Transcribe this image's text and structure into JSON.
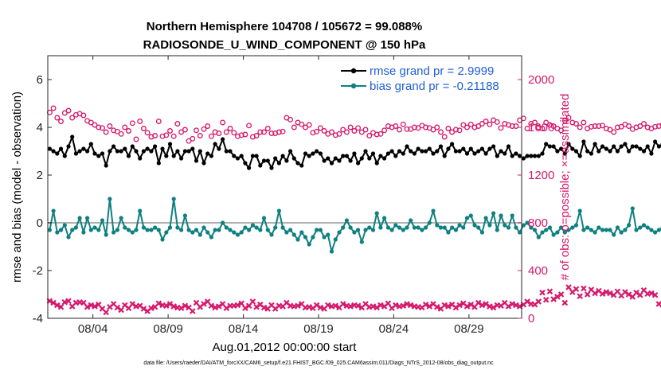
{
  "chart_data": {
    "type": "line",
    "title_line1": "Northern Hemisphere 104708 / 105672 = 99.088%",
    "title_line2": "RADIOSONDE_U_WIND_COMPONENT @ 150 hPa",
    "xlabel": "Aug.01,2012 00:00:00 start",
    "ylabel_left": "rmse and bias (model - observation)",
    "ylabel_right": "# of obs: o=possible; ×=assimilated",
    "footnote": "data file: /Users/raeder/DAI/ATM_forcXX/CAM6_setup/f.e21.FHIST_BGC.f09_025.CAM6assim.011/Diags_NTrS_2012-08/obs_diag_output.nc",
    "x_range_days": [
      0,
      31.5
    ],
    "x_ticks": [
      {
        "day": 3,
        "label": "08/04"
      },
      {
        "day": 8,
        "label": "08/09"
      },
      {
        "day": 13,
        "label": "08/14"
      },
      {
        "day": 18,
        "label": "08/19"
      },
      {
        "day": 23,
        "label": "08/24"
      },
      {
        "day": 28,
        "label": "08/29"
      }
    ],
    "y_left": {
      "range": [
        -4,
        7
      ],
      "ticks": [
        {
          "v": -4,
          "label": "-4"
        },
        {
          "v": -2,
          "label": "-2"
        },
        {
          "v": 0,
          "label": "0"
        },
        {
          "v": 2,
          "label": "2"
        },
        {
          "v": 4,
          "label": "4"
        },
        {
          "v": 6,
          "label": "6"
        }
      ]
    },
    "y_right": {
      "range": [
        0,
        2200
      ],
      "ticks": [
        {
          "v": 0,
          "label": "0"
        },
        {
          "v": 400,
          "label": "400"
        },
        {
          "v": 800,
          "label": "800"
        },
        {
          "v": 1200,
          "label": "1200"
        },
        {
          "v": 1600,
          "label": "1600"
        },
        {
          "v": 2000,
          "label": "2000"
        }
      ]
    },
    "zero_line": 0,
    "x_step_days": 0.25,
    "series": [
      {
        "name": "rmse",
        "legend": "rmse grand pr = 2.9999",
        "color": "#000000",
        "axis": "left",
        "values": [
          3.1,
          3.0,
          2.9,
          3.1,
          2.8,
          3.2,
          3.6,
          2.9,
          3.0,
          3.1,
          3.0,
          3.3,
          2.9,
          2.8,
          2.9,
          2.4,
          3.0,
          3.2,
          3.0,
          3.0,
          3.1,
          2.8,
          3.2,
          3.0,
          2.7,
          3.0,
          3.1,
          3.0,
          3.2,
          2.5,
          3.1,
          2.8,
          3.3,
          2.8,
          3.0,
          2.7,
          3.0,
          3.0,
          3.1,
          2.6,
          3.0,
          2.5,
          2.9,
          2.8,
          3.3,
          3.1,
          3.5,
          3.0,
          3.0,
          2.8,
          2.7,
          2.8,
          2.5,
          2.3,
          2.8,
          2.8,
          2.4,
          2.6,
          2.6,
          2.3,
          2.7,
          2.5,
          2.8,
          2.6,
          3.0,
          2.7,
          2.5,
          2.4,
          2.9,
          2.8,
          2.9,
          3.0,
          2.9,
          2.6,
          2.7,
          2.5,
          2.7,
          2.6,
          2.8,
          2.8,
          2.6,
          2.9,
          2.5,
          2.7,
          3.0,
          2.7,
          2.9,
          2.5,
          2.8,
          2.7,
          2.9,
          3.0,
          2.8,
          3.0,
          2.9,
          3.2,
          3.0,
          2.9,
          3.1,
          3.0,
          3.0,
          3.1,
          2.9,
          3.0,
          3.2,
          2.8,
          3.1,
          3.3,
          3.0,
          3.0,
          3.1,
          2.9,
          3.1,
          2.9,
          3.0,
          3.1,
          2.9,
          3.1,
          3.2,
          2.8,
          3.0,
          2.9,
          3.2,
          2.8,
          2.9,
          2.8,
          2.7,
          2.8,
          2.8,
          2.8,
          2.8,
          2.9,
          3.3,
          3.2,
          3.2,
          3.0,
          3.1,
          2.9,
          3.3,
          3.1,
          3.0,
          2.8,
          3.4,
          3.0,
          2.9,
          3.3,
          3.0,
          3.2,
          3.1,
          3.0,
          3.2,
          3.0,
          3.2,
          3.3,
          3.0,
          3.2,
          3.2,
          3.1,
          3.0,
          3.2,
          2.9,
          3.4,
          3.2,
          3.3,
          3.0,
          3.3,
          3.0,
          3.3,
          3.2,
          3.0,
          3.2,
          2.7,
          3.2,
          3.4
        ]
      },
      {
        "name": "bias",
        "legend": "bias grand pr = -0.21188",
        "color": "#0f8080",
        "axis": "left",
        "values": [
          -0.3,
          0.5,
          -0.4,
          -0.3,
          -0.1,
          -0.6,
          -0.3,
          -0.2,
          0.2,
          -0.4,
          0.2,
          -0.3,
          -0.2,
          -0.3,
          0.1,
          -0.5,
          1.0,
          -0.4,
          -0.3,
          0.2,
          -0.2,
          -0.3,
          -0.4,
          -0.3,
          0.5,
          -0.2,
          -0.3,
          -0.3,
          -0.2,
          -0.3,
          -0.7,
          -0.4,
          -0.2,
          1.0,
          -0.2,
          -0.3,
          0.3,
          -0.3,
          -0.4,
          -0.3,
          -0.5,
          -0.2,
          -0.4,
          -0.6,
          -0.3,
          -0.3,
          0.0,
          -0.2,
          -0.3,
          -0.4,
          -0.5,
          -0.4,
          -0.2,
          -0.3,
          -0.1,
          -0.2,
          -0.3,
          0.2,
          -0.3,
          -0.5,
          -0.2,
          0.5,
          -0.2,
          -0.4,
          -0.3,
          -0.5,
          -0.7,
          -0.4,
          -0.6,
          -0.9,
          -0.6,
          -0.3,
          -0.3,
          -0.6,
          -0.5,
          -1.2,
          -0.7,
          -0.4,
          -0.2,
          0.1,
          -0.2,
          -0.4,
          -0.3,
          -0.8,
          -0.3,
          -0.2,
          -0.3,
          0.4,
          -0.2,
          0.2,
          -0.2,
          -0.3,
          -0.1,
          -0.2,
          -0.3,
          -0.2,
          0.1,
          -0.2,
          -0.2,
          -0.3,
          -0.2,
          0.0,
          0.5,
          -0.1,
          -0.2,
          -0.2,
          -0.4,
          -0.2,
          -0.3,
          -0.1,
          -0.2,
          0.2,
          0.3,
          -0.1,
          -0.2,
          -0.4,
          0.2,
          -0.1,
          0.4,
          -0.3,
          0.3,
          -0.1,
          -0.2,
          0.3,
          -0.2,
          -0.4,
          -0.1,
          0.0,
          -0.2,
          -0.3,
          -0.6,
          -0.4,
          -0.3,
          -0.2,
          -0.5,
          -0.4,
          -0.2,
          -0.4,
          -0.3,
          -0.2,
          -0.1,
          0.5,
          -0.3,
          -0.2,
          -0.3,
          -0.4,
          -0.2,
          -0.3,
          -0.3,
          -0.3,
          -0.5,
          -0.2,
          -0.4,
          -0.3,
          -0.1,
          0.6,
          -0.3,
          -0.2,
          -0.1,
          -0.2,
          -0.3,
          -0.4,
          -0.3,
          -0.2,
          -0.3,
          -0.2,
          -0.4,
          -0.3,
          0.9,
          -0.3,
          0.0,
          0.3,
          -0.2,
          -0.3,
          -0.2,
          -0.4
        ]
      },
      {
        "name": "obs_possible",
        "legend": "",
        "color": "#d6186b",
        "axis": "right",
        "marker": "o",
        "values": [
          1725,
          1760,
          1680,
          1650,
          1720,
          1740,
          1680,
          1705,
          1715,
          1700,
          1655,
          1640,
          1620,
          1600,
          1595,
          1560,
          1610,
          1575,
          1565,
          1545,
          1600,
          1570,
          1635,
          1500,
          1650,
          1590,
          1555,
          1520,
          1530,
          1650,
          1525,
          1535,
          1570,
          1525,
          1630,
          1560,
          1580,
          1485,
          1505,
          1575,
          1530,
          1585,
          1610,
          1525,
          1560,
          1550,
          1640,
          1560,
          1590,
          1555,
          1525,
          1535,
          1540,
          1615,
          1520,
          1530,
          1560,
          1560,
          1590,
          1550,
          1550,
          1560,
          1565,
          1680,
          1665,
          1600,
          1640,
          1625,
          1600,
          1620,
          1555,
          1565,
          1595,
          1570,
          1545,
          1560,
          1535,
          1545,
          1580,
          1560,
          1600,
          1570,
          1595,
          1560,
          1580,
          1530,
          1555,
          1540,
          1545,
          1575,
          1610,
          1600,
          1610,
          1580,
          1625,
          1585,
          1585,
          1600,
          1595,
          1615,
          1600,
          1595,
          1580,
          1600,
          1560,
          1520,
          1590,
          1560,
          1580,
          1575,
          1620,
          1600,
          1625,
          1600,
          1610,
          1630,
          1650,
          1625,
          1660,
          1645,
          1595,
          1630,
          1620,
          1610,
          1610,
          1660,
          1675,
          1590,
          1630,
          1640,
          1600,
          1590,
          1640,
          1620,
          1610,
          1590,
          1575,
          1655,
          1680,
          1640,
          1630,
          1600,
          1640,
          1590,
          1605,
          1610,
          1610,
          1615,
          1590,
          1580,
          1560,
          1600,
          1605,
          1625,
          1610,
          1585,
          1600,
          1610,
          1630,
          1600,
          1590,
          1605,
          1610,
          1620,
          1600,
          1615,
          1600,
          1605,
          1590,
          1620,
          1625,
          1610,
          1640,
          1600,
          1600,
          1585
        ]
      },
      {
        "name": "obs_assimilated",
        "legend": "",
        "color": "#d6186b",
        "axis": "right",
        "marker": "x",
        "values": [
          145,
          130,
          110,
          95,
          135,
          145,
          100,
          130,
          135,
          130,
          95,
          110,
          100,
          115,
          80,
          50,
          95,
          120,
          90,
          70,
          110,
          85,
          120,
          100,
          105,
          80,
          60,
          85,
          95,
          125,
          110,
          105,
          120,
          100,
          90,
          85,
          105,
          90,
          60,
          130,
          95,
          120,
          140,
          105,
          90,
          100,
          120,
          85,
          105,
          105,
          110,
          125,
          85,
          105,
          140,
          95,
          115,
          90,
          80,
          110,
          80,
          105,
          100,
          130,
          105,
          100,
          105,
          120,
          90,
          95,
          85,
          110,
          90,
          80,
          110,
          100,
          105,
          90,
          120,
          105,
          100,
          110,
          105,
          90,
          120,
          95,
          100,
          90,
          110,
          100,
          125,
          85,
          110,
          100,
          105,
          120,
          110,
          100,
          95,
          90,
          115,
          100,
          120,
          95,
          80,
          110,
          100,
          115,
          90,
          110,
          125,
          100,
          115,
          95,
          130,
          110,
          120,
          100,
          90,
          110,
          105,
          130,
          100,
          120,
          110,
          100,
          115,
          140,
          120,
          115,
          140,
          215,
          155,
          225,
          160,
          180,
          200,
          130,
          260,
          220,
          245,
          185,
          250,
          200,
          240,
          210,
          230,
          205,
          220,
          210,
          195,
          225,
          190,
          220,
          200,
          180,
          215,
          195,
          235,
          205,
          210,
          195,
          120,
          115,
          130,
          110,
          125,
          135,
          115,
          125,
          110,
          130,
          115,
          130,
          120,
          125,
          135,
          110,
          130,
          80
        ]
      }
    ]
  }
}
